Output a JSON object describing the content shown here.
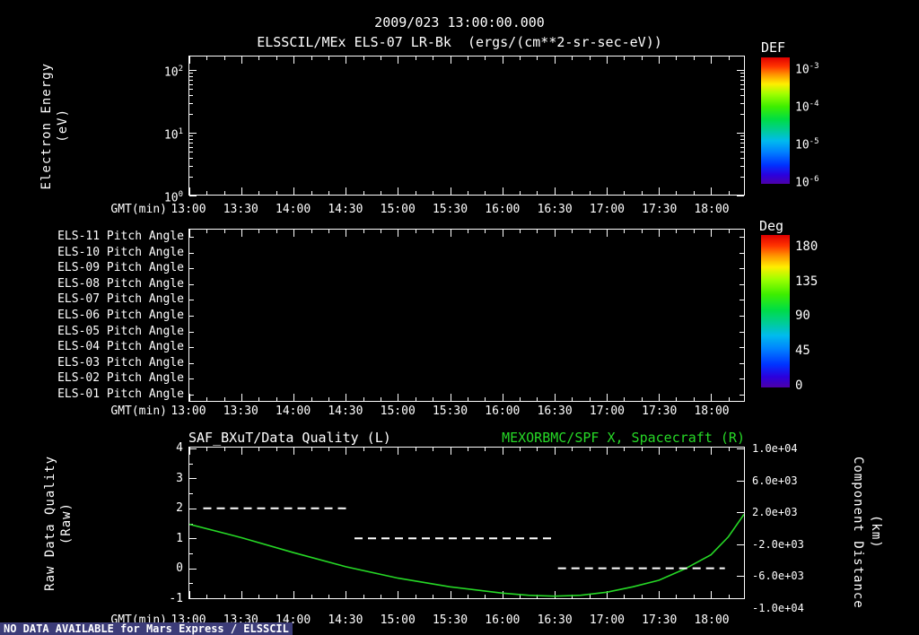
{
  "window": {
    "title1": "2009/023 13:00:00.000",
    "title2": "ELSSCIL/MEx ELS-07 LR-Bk  (ergs/(cm**2-sr-sec-eV))",
    "status": "NO DATA AVAILABLE for Mars Express / ELSSCIL"
  },
  "colors": {
    "background": "#000000",
    "foreground": "#ffffff",
    "green": "#26d826",
    "status_bg": "#3c3c78"
  },
  "xaxis": {
    "label": "GMT(min)",
    "labels": [
      "13:00",
      "13:30",
      "14:00",
      "14:30",
      "15:00",
      "15:30",
      "16:00",
      "16:30",
      "17:00",
      "17:30",
      "18:00"
    ],
    "t_start_min": 0,
    "t_end_min": 319,
    "major_every_min": 30,
    "minor_every_min": 10
  },
  "panel1": {
    "ylabel_line1": "Electron Energy",
    "ylabel_line2": "(eV)",
    "yticks": [
      {
        "base": "10",
        "exp": "2"
      },
      {
        "base": "10",
        "exp": "1"
      },
      {
        "base": "10",
        "exp": "0"
      }
    ]
  },
  "colorbar1": {
    "title": "DEF",
    "ticks": [
      {
        "base": "10",
        "exp": "-3"
      },
      {
        "base": "10",
        "exp": "-4"
      },
      {
        "base": "10",
        "exp": "-5"
      },
      {
        "base": "10",
        "exp": "-6"
      }
    ]
  },
  "panel2": {
    "labels": [
      "ELS-11 Pitch Angle",
      "ELS-10 Pitch Angle",
      "ELS-09 Pitch Angle",
      "ELS-08 Pitch Angle",
      "ELS-07 Pitch Angle",
      "ELS-06 Pitch Angle",
      "ELS-05 Pitch Angle",
      "ELS-04 Pitch Angle",
      "ELS-03 Pitch Angle",
      "ELS-02 Pitch Angle",
      "ELS-01 Pitch Angle"
    ]
  },
  "colorbar2": {
    "title": "Deg",
    "ticks": [
      "180",
      "135",
      "90",
      "45",
      "0"
    ]
  },
  "panel3": {
    "title_left": "SAF_BXuT/Data Quality (L)",
    "title_right": "MEXORBMC/SPF X, Spacecraft (R)",
    "ylabel_line1": "Raw Data Quality",
    "ylabel_line2": "(Raw)",
    "left_ticks": [
      "4",
      "3",
      "2",
      "1",
      "0",
      "-1"
    ],
    "right_label_line1": "Component Distance",
    "right_label_line2": "(km)",
    "right_ticks": [
      "1.0e+04",
      "6.0e+03",
      "2.0e+03",
      "-2.0e+03",
      "-6.0e+03",
      "-1.0e+04"
    ]
  },
  "chart_data": [
    {
      "type": "heatmap",
      "panel": "top-spectrogram",
      "title": "ELSSCIL/MEx ELS-07 LR-Bk",
      "units": "ergs/(cm**2-sr-sec-eV)",
      "xlabel": "GMT(min)",
      "x_ticks": [
        "13:00",
        "13:30",
        "14:00",
        "14:30",
        "15:00",
        "15:30",
        "16:00",
        "16:30",
        "17:00",
        "17:30",
        "18:00"
      ],
      "ylabel": "Electron Energy (eV)",
      "yscale": "log",
      "ylim": [
        1,
        100
      ],
      "colorbar": {
        "label": "DEF",
        "scale": "log",
        "tick_values": [
          "1e-3",
          "1e-4",
          "1e-5",
          "1e-6"
        ]
      },
      "values": [],
      "note": "panel is empty - no data plotted"
    },
    {
      "type": "heatmap",
      "panel": "middle-pitch-angles",
      "rows": [
        "ELS-11",
        "ELS-10",
        "ELS-09",
        "ELS-08",
        "ELS-07",
        "ELS-06",
        "ELS-05",
        "ELS-04",
        "ELS-03",
        "ELS-02",
        "ELS-01"
      ],
      "xlabel": "GMT(min)",
      "x_ticks": [
        "13:00",
        "13:30",
        "14:00",
        "14:30",
        "15:00",
        "15:30",
        "16:00",
        "16:30",
        "17:00",
        "17:30",
        "18:00"
      ],
      "colorbar": {
        "label": "Deg",
        "tick_values": [
          180,
          135,
          90,
          45,
          0
        ]
      },
      "values": [],
      "note": "panel is empty - no data plotted"
    },
    {
      "type": "line",
      "panel": "bottom-timeseries",
      "title_left": "SAF_BXuT/Data Quality (L)",
      "title_right": "MEXORBMC/SPF X, Spacecraft (R)",
      "xlabel": "GMT(min)",
      "x_minutes_range": [
        0,
        319
      ],
      "x_ticks": [
        "13:00",
        "13:30",
        "14:00",
        "14:30",
        "15:00",
        "15:30",
        "16:00",
        "16:30",
        "17:00",
        "17:30",
        "18:00"
      ],
      "left_axis": {
        "label": "Raw Data Quality (Raw)",
        "range": [
          -1,
          4
        ],
        "ticks": [
          4,
          3,
          2,
          1,
          0,
          -1
        ]
      },
      "right_axis": {
        "label": "Component Distance (km)",
        "ticks_km": [
          10000,
          6000,
          2000,
          -2000,
          -6000,
          -10000
        ]
      },
      "series": [
        {
          "name": "MEXORBMC/SPF X Spacecraft",
          "axis": "right",
          "color": "green",
          "style": "solid",
          "points_units": "minutes-after-13:00 vs left-axis units (1 unit ~ 4000 km)",
          "points": [
            [
              0,
              1.47
            ],
            [
              30,
              1.02
            ],
            [
              60,
              0.52
            ],
            [
              90,
              0.05
            ],
            [
              120,
              -0.33
            ],
            [
              150,
              -0.62
            ],
            [
              180,
              -0.83
            ],
            [
              195,
              -0.9
            ],
            [
              210,
              -0.93
            ],
            [
              225,
              -0.9
            ],
            [
              240,
              -0.8
            ],
            [
              255,
              -0.62
            ],
            [
              270,
              -0.4
            ],
            [
              285,
              -0.02
            ],
            [
              300,
              0.45
            ],
            [
              310,
              1.05
            ],
            [
              319,
              1.8
            ]
          ]
        },
        {
          "name": "SAF_BXuT Data Quality",
          "axis": "left",
          "color": "white",
          "style": "dashed",
          "segments": [
            {
              "t_start_min": 8,
              "t_end_min": 93,
              "value": 2
            },
            {
              "t_start_min": 95,
              "t_end_min": 208,
              "value": 1
            },
            {
              "t_start_min": 212,
              "t_end_min": 308,
              "value": 0
            }
          ]
        }
      ]
    }
  ]
}
